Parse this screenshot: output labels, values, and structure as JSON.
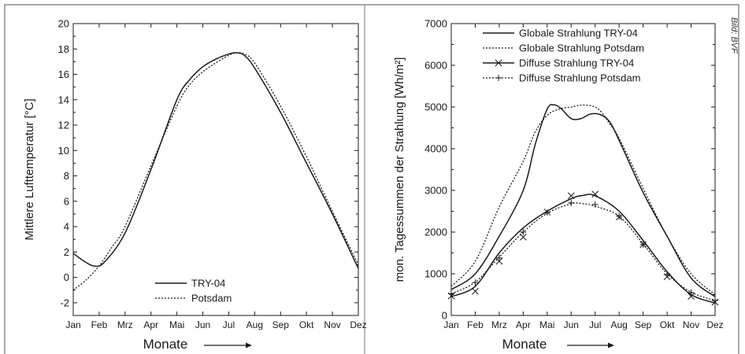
{
  "credit": "Bild: BVF",
  "colors": {
    "line": "#1a1a1a",
    "frame": "#555555"
  },
  "chart_data": [
    {
      "type": "line",
      "title": "",
      "xlabel": "Monate",
      "ylabel": "Mittlere Lufttemperatur [°C]",
      "categories": [
        "Jan",
        "Feb",
        "Mrz",
        "Apr",
        "Mai",
        "Jun",
        "Jul",
        "Aug",
        "Sep",
        "Okt",
        "Nov",
        "Dez"
      ],
      "ylim": [
        -3,
        20
      ],
      "yticks": [
        -2,
        0,
        2,
        4,
        6,
        8,
        10,
        12,
        14,
        16,
        18,
        20
      ],
      "legend_position": "bottom-center",
      "series": [
        {
          "name": "TRY-04",
          "style": "solid",
          "x": [
            1,
            1.4,
            1.8,
            2.2,
            3,
            4,
            5,
            5.5,
            6,
            6.5,
            7,
            7.3,
            7.6,
            8,
            9,
            10,
            11,
            12
          ],
          "values": [
            1.9,
            1.3,
            0.9,
            1.2,
            3.5,
            8.5,
            14.0,
            15.6,
            16.6,
            17.2,
            17.6,
            17.7,
            17.5,
            16.5,
            13.0,
            9.0,
            5.0,
            0.7
          ]
        },
        {
          "name": "Potsdam",
          "style": "dotted",
          "x": [
            1,
            1.5,
            2,
            2.5,
            3,
            4,
            5,
            5.5,
            6,
            6.5,
            7,
            7.3,
            7.6,
            8,
            9,
            10,
            11,
            12
          ],
          "values": [
            -1.0,
            -0.2,
            0.9,
            2.4,
            4.0,
            8.8,
            13.5,
            15.2,
            16.2,
            16.9,
            17.5,
            17.7,
            17.6,
            16.9,
            13.5,
            9.5,
            5.2,
            1.0
          ]
        }
      ]
    },
    {
      "type": "line",
      "title": "",
      "xlabel": "Monate",
      "ylabel": "mon. Tagessummen der Strahlung [Wh/m²]",
      "categories": [
        "Jan",
        "Feb",
        "Mrz",
        "Apr",
        "Mai",
        "Jun",
        "Jul",
        "Aug",
        "Sep",
        "Okt",
        "Nov",
        "Dez"
      ],
      "ylim": [
        0,
        7000
      ],
      "yticks": [
        0,
        1000,
        2000,
        3000,
        4000,
        5000,
        6000,
        7000
      ],
      "legend_position": "top-center",
      "series": [
        {
          "name": "Globale Strahlung TRY-04",
          "style": "solid",
          "marker": "none",
          "x": [
            1,
            2,
            3,
            4,
            4.5,
            5,
            5.3,
            5.6,
            6,
            6.4,
            6.8,
            7.2,
            7.6,
            8,
            9,
            10,
            11,
            12
          ],
          "values": [
            620,
            1000,
            1900,
            3000,
            4100,
            4950,
            5050,
            4950,
            4720,
            4720,
            4830,
            4820,
            4650,
            4200,
            2950,
            1900,
            900,
            450
          ]
        },
        {
          "name": "Globale Strahlung Potsdam",
          "style": "dotted",
          "marker": "none",
          "x": [
            1,
            2,
            3,
            4,
            4.5,
            5,
            5.5,
            6,
            6.5,
            7,
            7.3,
            7.6,
            8,
            9,
            10,
            11,
            12
          ],
          "values": [
            700,
            1300,
            2600,
            3700,
            4400,
            4800,
            4950,
            5000,
            5050,
            5000,
            4850,
            4600,
            4250,
            3050,
            1900,
            1000,
            500
          ]
        },
        {
          "name": "Diffuse Strahlung TRY-04",
          "style": "solid",
          "marker": "x",
          "x": [
            1,
            2,
            3,
            4,
            5,
            6,
            6.5,
            7,
            8,
            9,
            10,
            11,
            12
          ],
          "values": [
            450,
            700,
            1500,
            2100,
            2500,
            2800,
            2880,
            2870,
            2500,
            1800,
            1050,
            500,
            300
          ],
          "marks": [
            {
              "x": 1,
              "y": 470
            },
            {
              "x": 2,
              "y": 580
            },
            {
              "x": 3,
              "y": 1300
            },
            {
              "x": 4,
              "y": 1880
            },
            {
              "x": 5,
              "y": 2480
            },
            {
              "x": 6,
              "y": 2870
            },
            {
              "x": 7,
              "y": 2910
            },
            {
              "x": 8,
              "y": 2360
            },
            {
              "x": 9,
              "y": 1700
            },
            {
              "x": 10,
              "y": 930
            },
            {
              "x": 11,
              "y": 460
            },
            {
              "x": 12,
              "y": 320
            }
          ]
        },
        {
          "name": "Diffuse Strahlung Potsdam",
          "style": "dotted",
          "marker": "+",
          "x": [
            1,
            2,
            3,
            4,
            5,
            6,
            6.5,
            7,
            8,
            9,
            10,
            11,
            12
          ],
          "values": [
            520,
            800,
            1400,
            2000,
            2450,
            2680,
            2680,
            2620,
            2380,
            1720,
            1000,
            560,
            360
          ],
          "marks": [
            {
              "x": 1,
              "y": 520
            },
            {
              "x": 2,
              "y": 790
            },
            {
              "x": 3,
              "y": 1380
            },
            {
              "x": 4,
              "y": 2000
            },
            {
              "x": 5,
              "y": 2470
            },
            {
              "x": 6,
              "y": 2700
            },
            {
              "x": 7,
              "y": 2660
            },
            {
              "x": 8,
              "y": 2380
            },
            {
              "x": 9,
              "y": 1700
            },
            {
              "x": 10,
              "y": 980
            },
            {
              "x": 11,
              "y": 550
            },
            {
              "x": 12,
              "y": 360
            }
          ]
        }
      ]
    }
  ]
}
